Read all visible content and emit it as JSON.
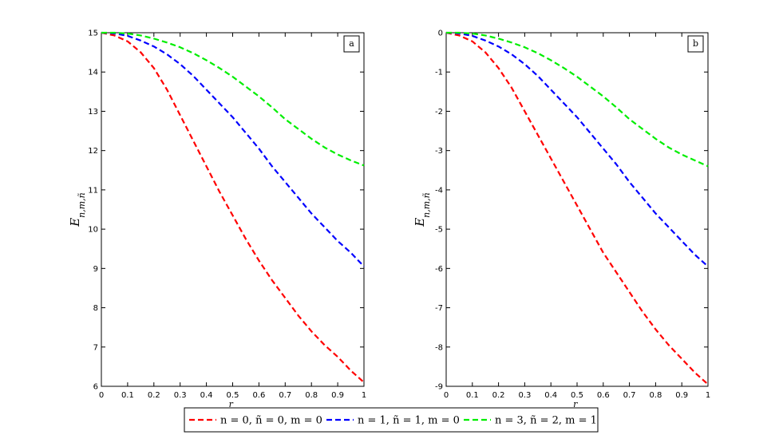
{
  "chart_data": [
    {
      "type": "line",
      "panel_label": "a",
      "xlabel": "r_c",
      "ylabel": "E_{n,m,ñ}",
      "xlim": [
        0,
        1
      ],
      "ylim": [
        6,
        15
      ],
      "x_ticks": [
        "0",
        "0.1",
        "0.2",
        "0.3",
        "0.4",
        "0.5",
        "0.6",
        "0.7",
        "0.8",
        "0.9",
        "1"
      ],
      "y_ticks": [
        "6",
        "7",
        "8",
        "9",
        "10",
        "11",
        "12",
        "13",
        "14",
        "15"
      ],
      "grid": false,
      "x": [
        0,
        0.05,
        0.1,
        0.15,
        0.2,
        0.25,
        0.3,
        0.35,
        0.4,
        0.45,
        0.5,
        0.55,
        0.6,
        0.65,
        0.7,
        0.75,
        0.8,
        0.85,
        0.9,
        0.95,
        1.0
      ],
      "series": [
        {
          "name": "n = 0, ñ = 0, m = 0",
          "color": "#ff0000",
          "values": [
            15.0,
            14.93,
            14.78,
            14.5,
            14.1,
            13.55,
            12.9,
            12.25,
            11.6,
            10.95,
            10.35,
            9.75,
            9.2,
            8.7,
            8.25,
            7.8,
            7.4,
            7.05,
            6.75,
            6.4,
            6.1
          ]
        },
        {
          "name": "n = 1, ñ = 1, m = 0",
          "color": "#0000ff",
          "values": [
            15.0,
            14.98,
            14.92,
            14.8,
            14.65,
            14.45,
            14.2,
            13.9,
            13.55,
            13.2,
            12.85,
            12.45,
            12.05,
            11.6,
            11.2,
            10.8,
            10.4,
            10.05,
            9.7,
            9.4,
            9.05
          ]
        },
        {
          "name": "n = 3, ñ = 2, m = 1",
          "color": "#00ee00",
          "values": [
            15.0,
            15.0,
            14.98,
            14.93,
            14.85,
            14.75,
            14.63,
            14.48,
            14.3,
            14.1,
            13.88,
            13.63,
            13.38,
            13.1,
            12.8,
            12.55,
            12.3,
            12.08,
            11.9,
            11.75,
            11.62
          ]
        }
      ]
    },
    {
      "type": "line",
      "panel_label": "b",
      "xlabel": "r_c",
      "ylabel": "E_{n,m,ñ}",
      "xlim": [
        0,
        1
      ],
      "ylim": [
        -9,
        0
      ],
      "x_ticks": [
        "0",
        "0.1",
        "0.2",
        "0.3",
        "0.4",
        "0.5",
        "0.6",
        "0.7",
        "0.8",
        "0.9",
        "1"
      ],
      "y_ticks": [
        "-9",
        "-8",
        "-7",
        "-6",
        "-5",
        "-4",
        "-3",
        "-2",
        "-1",
        "0"
      ],
      "grid": false,
      "x": [
        0,
        0.05,
        0.1,
        0.15,
        0.2,
        0.25,
        0.3,
        0.35,
        0.4,
        0.45,
        0.5,
        0.55,
        0.6,
        0.65,
        0.7,
        0.75,
        0.8,
        0.85,
        0.9,
        0.95,
        1.0
      ],
      "series": [
        {
          "name": "n = 0, ñ = 0, m = 0",
          "color": "#ff0000",
          "values": [
            0.0,
            -0.07,
            -0.22,
            -0.5,
            -0.9,
            -1.4,
            -2.0,
            -2.6,
            -3.2,
            -3.8,
            -4.4,
            -5.0,
            -5.6,
            -6.1,
            -6.6,
            -7.1,
            -7.55,
            -7.95,
            -8.3,
            -8.65,
            -8.95
          ]
        },
        {
          "name": "n = 1, ñ = 1, m = 0",
          "color": "#0000ff",
          "values": [
            0.0,
            -0.02,
            -0.08,
            -0.2,
            -0.35,
            -0.55,
            -0.8,
            -1.1,
            -1.45,
            -1.8,
            -2.15,
            -2.55,
            -2.95,
            -3.35,
            -3.8,
            -4.2,
            -4.6,
            -4.95,
            -5.3,
            -5.65,
            -5.95
          ]
        },
        {
          "name": "n = 3, ñ = 2, m = 1",
          "color": "#00ee00",
          "values": [
            0.0,
            0.0,
            -0.02,
            -0.07,
            -0.15,
            -0.25,
            -0.37,
            -0.52,
            -0.7,
            -0.9,
            -1.12,
            -1.37,
            -1.62,
            -1.9,
            -2.2,
            -2.45,
            -2.7,
            -2.92,
            -3.1,
            -3.25,
            -3.4
          ]
        }
      ]
    }
  ],
  "legend": {
    "placement": "bottom-center",
    "entries": [
      "n = 0, ñ = 0, m = 0",
      "n = 1, ñ = 1, m = 0",
      "n = 3, ñ = 2, m = 1"
    ],
    "colors": [
      "#ff0000",
      "#0000ff",
      "#00ee00"
    ]
  }
}
